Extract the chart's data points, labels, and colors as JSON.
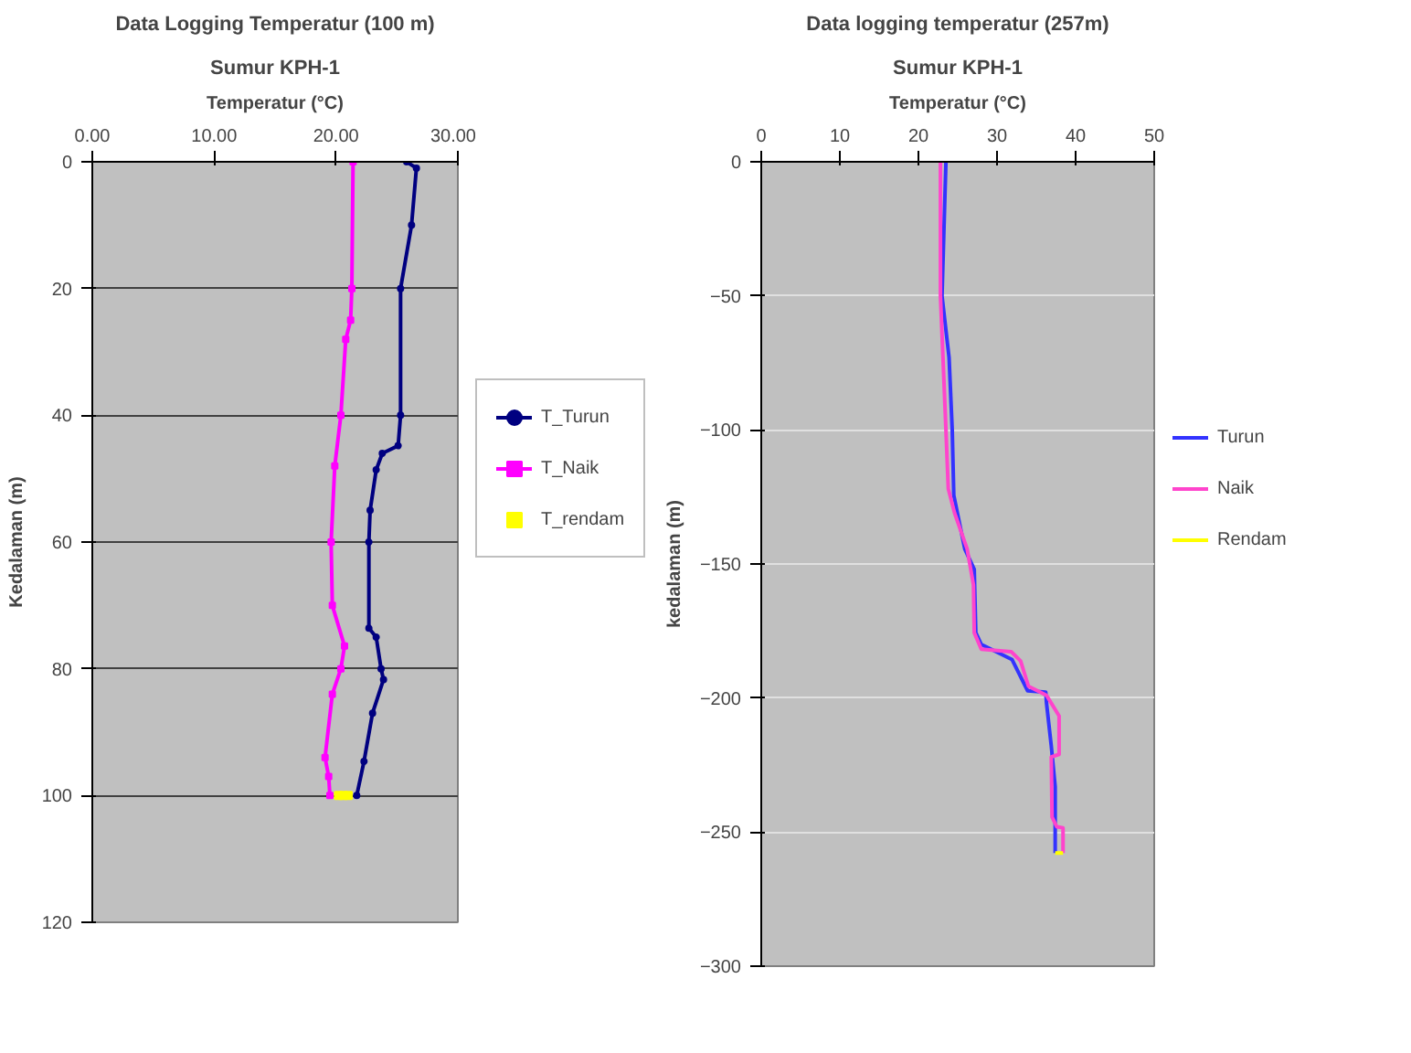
{
  "chart_data": [
    {
      "type": "line",
      "title": "Data Logging Temperatur (100 m)",
      "subtitle": "Sumur KPH-1",
      "xlabel": "Temperatur (°C)",
      "ylabel": "Kedalaman (m)",
      "xlim": [
        0,
        30
      ],
      "xticks": [
        {
          "value": 0,
          "label": "0.00"
        },
        {
          "value": 10,
          "label": "10.00"
        },
        {
          "value": 20,
          "label": "20.00"
        },
        {
          "value": 30,
          "label": "30.00"
        }
      ],
      "ylim": [
        120,
        0
      ],
      "yticks": [
        0,
        20,
        40,
        60,
        80,
        100,
        120
      ],
      "grid": "y",
      "legend": "right",
      "series": [
        {
          "name": "T_Turun",
          "color": "#000080",
          "marker": "circle",
          "x": [
            25.8,
            26.6,
            26.2,
            25.3,
            25.3,
            25.1,
            23.8,
            23.3,
            22.8,
            22.7,
            22.7,
            23.3,
            23.7,
            23.9,
            23.0,
            22.3,
            21.7
          ],
          "values": [
            0,
            1,
            10,
            20,
            40,
            44.8,
            46,
            48.6,
            55,
            60,
            73.6,
            75,
            80,
            81.7,
            87,
            94.6,
            100
          ]
        },
        {
          "name": "T_Naik",
          "color": "#ff00ff",
          "marker": "square",
          "x": [
            21.4,
            21.3,
            21.2,
            20.8,
            20.4,
            19.9,
            19.6,
            19.7,
            20.7,
            20.4,
            19.7,
            19.1,
            19.4,
            19.5
          ],
          "values": [
            0,
            20,
            25,
            28,
            40,
            48,
            60,
            70,
            76.4,
            80,
            84,
            94,
            97,
            100
          ]
        },
        {
          "name": "T_rendam",
          "type": "scatter",
          "color": "#ffff00",
          "marker": "square",
          "x": [
            20.2,
            20.6,
            21.0
          ],
          "values": [
            100,
            100,
            100
          ]
        }
      ]
    },
    {
      "type": "line",
      "title": "Data logging temperatur (257m)",
      "subtitle": "Sumur KPH-1",
      "xlabel": "Temperatur (°C)",
      "ylabel": "kedalaman (m)",
      "xlim": [
        0,
        50
      ],
      "xticks": [
        0,
        10,
        20,
        30,
        40,
        50
      ],
      "ylim": [
        -300,
        0
      ],
      "yticks": [
        -300,
        -250,
        -200,
        -150,
        -100,
        -50,
        0
      ],
      "grid": "y",
      "legend": "right",
      "series": [
        {
          "name": "Turun",
          "color": "#3333ff",
          "x": [
            23.5,
            23.0,
            23.9,
            24.3,
            24.5,
            25.9,
            27.1,
            27.3,
            28.0,
            31.9,
            33.9,
            36.2,
            36.3,
            36.9,
            37.4,
            37.4,
            37.4
          ],
          "values": [
            0,
            -50,
            -73,
            -100,
            -124.4,
            -144.4,
            -152,
            -175.6,
            -180,
            -185.6,
            -197.3,
            -197.8,
            -202,
            -217.8,
            -233,
            -249,
            -257.8
          ]
        },
        {
          "name": "Naik",
          "color": "#ff44cc",
          "x": [
            22.8,
            22.8,
            23.5,
            23.8,
            24.6,
            26.2,
            27.0,
            27.1,
            28.0,
            31.8,
            33.0,
            34.0,
            36.3,
            37.9,
            37.9,
            36.9,
            37.0,
            37.6,
            38.4,
            38.4
          ],
          "values": [
            0,
            -50,
            -100,
            -122,
            -131,
            -144.4,
            -157.8,
            -175.6,
            -181.8,
            -182.7,
            -186.2,
            -195.6,
            -199,
            -206.7,
            -221,
            -222,
            -244.4,
            -248,
            -248.4,
            -257.8
          ]
        },
        {
          "name": "Rendam",
          "color": "#ffff00",
          "x": [
            37.4,
            38.4
          ],
          "values": [
            -257.8,
            -257.8
          ]
        }
      ]
    }
  ]
}
